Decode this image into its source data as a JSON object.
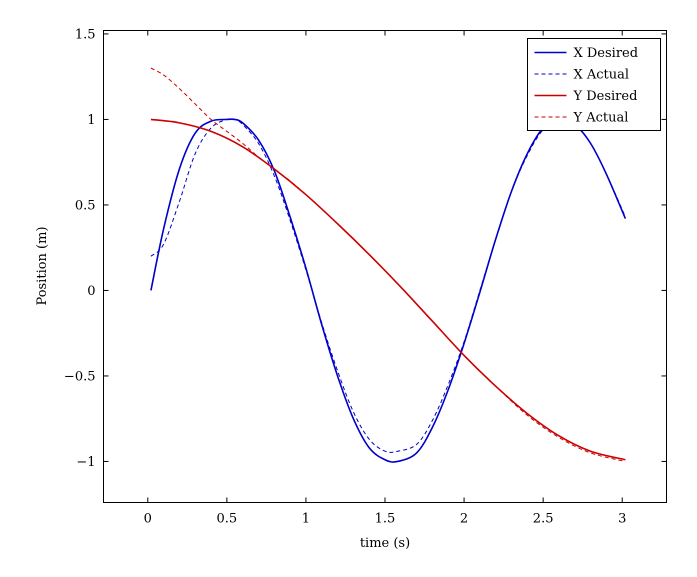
{
  "chart_data": {
    "type": "line",
    "xlabel": "time (s)",
    "ylabel": "Position (m)",
    "xlim": [
      -0.28,
      3.28
    ],
    "ylim": [
      -1.24,
      1.52
    ],
    "xticks": [
      0,
      0.5,
      1,
      1.5,
      2,
      2.5,
      3
    ],
    "xtick_labels": [
      "0",
      "0.5",
      "1",
      "1.5",
      "2",
      "2.5",
      "3"
    ],
    "yticks": [
      -1,
      -0.5,
      0,
      0.5,
      1,
      1.5
    ],
    "ytick_labels": [
      "−1",
      "−0.5",
      "0",
      "0.5",
      "1",
      "1.5"
    ],
    "grid": false,
    "legend_position": "top-right",
    "series": [
      {
        "name": "X Desired",
        "color": "#0000cc",
        "style": "solid",
        "points": [
          [
            0.02,
            0.0
          ],
          [
            0.1,
            0.36
          ],
          [
            0.2,
            0.71
          ],
          [
            0.3,
            0.92
          ],
          [
            0.4,
            0.99
          ],
          [
            0.5,
            1.0
          ],
          [
            0.55,
            1.0
          ],
          [
            0.6,
            0.98
          ],
          [
            0.7,
            0.88
          ],
          [
            0.8,
            0.7
          ],
          [
            0.9,
            0.43
          ],
          [
            1.0,
            0.13
          ],
          [
            1.1,
            -0.2
          ],
          [
            1.2,
            -0.5
          ],
          [
            1.3,
            -0.75
          ],
          [
            1.4,
            -0.92
          ],
          [
            1.5,
            -0.99
          ],
          [
            1.58,
            -1.0
          ],
          [
            1.7,
            -0.95
          ],
          [
            1.8,
            -0.8
          ],
          [
            1.9,
            -0.58
          ],
          [
            2.0,
            -0.31
          ],
          [
            2.1,
            -0.01
          ],
          [
            2.2,
            0.3
          ],
          [
            2.3,
            0.58
          ],
          [
            2.4,
            0.8
          ],
          [
            2.5,
            0.95
          ],
          [
            2.6,
            1.0
          ],
          [
            2.7,
            0.97
          ],
          [
            2.8,
            0.86
          ],
          [
            2.9,
            0.68
          ],
          [
            3.02,
            0.42
          ]
        ]
      },
      {
        "name": "X Actual",
        "color": "#0000cc",
        "style": "dashed",
        "points": [
          [
            0.02,
            0.2
          ],
          [
            0.1,
            0.27
          ],
          [
            0.2,
            0.52
          ],
          [
            0.3,
            0.8
          ],
          [
            0.4,
            0.95
          ],
          [
            0.5,
            1.0
          ],
          [
            0.55,
            1.0
          ],
          [
            0.6,
            0.97
          ],
          [
            0.7,
            0.86
          ],
          [
            0.8,
            0.67
          ],
          [
            0.9,
            0.41
          ],
          [
            1.0,
            0.12
          ],
          [
            1.1,
            -0.19
          ],
          [
            1.2,
            -0.47
          ],
          [
            1.3,
            -0.71
          ],
          [
            1.4,
            -0.87
          ],
          [
            1.5,
            -0.94
          ],
          [
            1.58,
            -0.94
          ],
          [
            1.7,
            -0.9
          ],
          [
            1.8,
            -0.76
          ],
          [
            1.9,
            -0.55
          ],
          [
            2.0,
            -0.3
          ],
          [
            2.1,
            0.0
          ],
          [
            2.2,
            0.3
          ],
          [
            2.3,
            0.58
          ],
          [
            2.4,
            0.79
          ],
          [
            2.5,
            0.94
          ],
          [
            2.6,
            0.99
          ],
          [
            2.7,
            0.97
          ],
          [
            2.8,
            0.86
          ],
          [
            2.9,
            0.68
          ],
          [
            3.02,
            0.43
          ]
        ]
      },
      {
        "name": "Y Desired",
        "color": "#cc0000",
        "style": "solid",
        "points": [
          [
            0.02,
            1.0
          ],
          [
            0.2,
            0.98
          ],
          [
            0.4,
            0.93
          ],
          [
            0.6,
            0.84
          ],
          [
            0.8,
            0.71
          ],
          [
            1.0,
            0.56
          ],
          [
            1.2,
            0.39
          ],
          [
            1.4,
            0.21
          ],
          [
            1.6,
            0.02
          ],
          [
            1.8,
            -0.18
          ],
          [
            2.0,
            -0.38
          ],
          [
            2.2,
            -0.56
          ],
          [
            2.4,
            -0.72
          ],
          [
            2.6,
            -0.85
          ],
          [
            2.8,
            -0.94
          ],
          [
            3.02,
            -0.99
          ]
        ]
      },
      {
        "name": "Y Actual",
        "color": "#cc0000",
        "style": "dashed",
        "points": [
          [
            0.02,
            1.3
          ],
          [
            0.1,
            1.26
          ],
          [
            0.2,
            1.18
          ],
          [
            0.3,
            1.09
          ],
          [
            0.4,
            1.0
          ],
          [
            0.5,
            0.93
          ],
          [
            0.6,
            0.86
          ],
          [
            0.7,
            0.78
          ],
          [
            0.8,
            0.71
          ],
          [
            0.9,
            0.64
          ],
          [
            1.0,
            0.56
          ],
          [
            1.2,
            0.39
          ],
          [
            1.4,
            0.21
          ],
          [
            1.6,
            0.02
          ],
          [
            1.8,
            -0.18
          ],
          [
            2.0,
            -0.38
          ],
          [
            2.2,
            -0.56
          ],
          [
            2.4,
            -0.73
          ],
          [
            2.6,
            -0.86
          ],
          [
            2.8,
            -0.95
          ],
          [
            3.02,
            -1.0
          ]
        ]
      }
    ]
  }
}
